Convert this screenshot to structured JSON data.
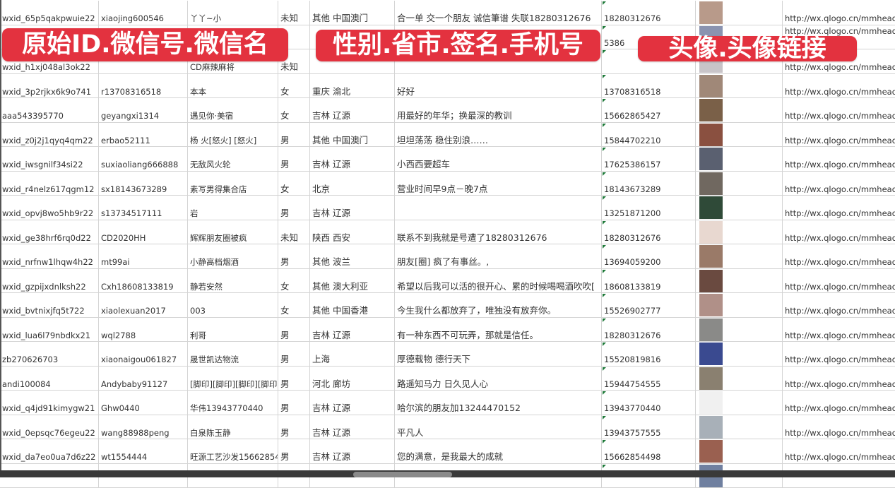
{
  "banners": [
    "原始ID.微信号.微信名",
    "性别.省市.签名.手机号",
    "头像.头像链接"
  ],
  "colors": {
    "banner": "#e3323f",
    "grid": "#d4d4d4",
    "marker": "#1f7a3a"
  },
  "rows": [
    {
      "id": "wxid_65p5qakpwuie22",
      "wechat": "xiaojing600546",
      "name": "丫丫~小",
      "gender": "未知",
      "region": "其他 中国澳门",
      "signature": "合一单 交一个朋友 诚信筆谱 失联18280312676",
      "phone": "18280312676",
      "avatar": "#b89a8a",
      "url": "http://wx.qlogo.cn/mmhead"
    },
    {
      "id": "",
      "wechat": "",
      "name": "",
      "gender": "",
      "region": "",
      "signature": "",
      "phone": "5386",
      "avatar": "#8a93b0",
      "url": "http://wx.qlogo.cn/mmhead"
    },
    {
      "id": "wxid_h1xj048al3ok22",
      "wechat": "",
      "name": "CD麻辣麻将",
      "gender": "未知",
      "region": "",
      "signature": "",
      "phone": "",
      "avatar": "#c8c4c8",
      "url": "http://wx.qlogo.cn/mmhead"
    },
    {
      "id": "wxid_3p2rjkx6k9o741",
      "wechat": "r13708316518",
      "name": "本本",
      "gender": "女",
      "region": "重庆 渝北",
      "signature": "好好",
      "phone": "13708316518",
      "avatar": "#a08878",
      "url": "http://wx.qlogo.cn/mmhead"
    },
    {
      "id": "aaa543395770",
      "wechat": "geyangxi1314",
      "name": "遇见你·美宿",
      "gender": "女",
      "region": "吉林 辽源",
      "signature": "用最好的年华；换最深的教训",
      "phone": "15662865427",
      "avatar": "#7a6048",
      "url": "http://wx.qlogo.cn/mmhead"
    },
    {
      "id": "wxid_z0j2j1qyq4qm22",
      "wechat": "erbao52111",
      "name": "杨 火[怒火] [怒火]",
      "gender": "男",
      "region": "其他 中国澳门",
      "signature": "坦坦荡荡 稳住别浪……",
      "phone": "15844702210",
      "avatar": "#8a5040",
      "url": "http://wx.qlogo.cn/mmhead"
    },
    {
      "id": "wxid_iwsgnilf34si22",
      "wechat": "suxiaoliang666888",
      "name": "无敌风火轮",
      "gender": "男",
      "region": "吉林 辽源",
      "signature": "小西西要超车",
      "phone": "17625386157",
      "avatar": "#5a6070",
      "url": "http://wx.qlogo.cn/mmhead"
    },
    {
      "id": "wxid_r4nelz617qgm12",
      "wechat": "sx18143673289",
      "name": "素写男得集合店",
      "gender": "女",
      "region": "北京",
      "signature": "营业时间早9点－晚7点",
      "phone": "18143673289",
      "avatar": "#706860",
      "url": "http://wx.qlogo.cn/mmhead"
    },
    {
      "id": "wxid_opvj8wo5hb9r22",
      "wechat": "s13734517111",
      "name": "岩",
      "gender": "男",
      "region": "吉林 辽源",
      "signature": "",
      "phone": "13251871200",
      "avatar": "#2f4a38",
      "url": "http://wx.qlogo.cn/mmhead"
    },
    {
      "id": "wxid_ge38hrf6rq0d22",
      "wechat": "CD2020HH",
      "name": "辉辉朋友圈被疯",
      "gender": "未知",
      "region": "陕西 西安",
      "signature": "联系不到我就是号遭了18280312676",
      "phone": "18280312676",
      "avatar": "#e8d8d0",
      "url": "http://wx.qlogo.cn/mmhead"
    },
    {
      "id": "wxid_nrfnw1lhqw4h22",
      "wechat": "mt99ai",
      "name": "小静高档烟酒",
      "gender": "男",
      "region": "其他 波兰",
      "signature": "朋友[圈] 疯了有事丝。,",
      "phone": "13694059200",
      "avatar": "#9a7a68",
      "url": "http://wx.qlogo.cn/mmhead"
    },
    {
      "id": "wxid_gzpijxdnlksh22",
      "wechat": "Cxh18608133819",
      "name": "静若安然",
      "gender": "女",
      "region": "其他 澳大利亚",
      "signature": "希望以后我可以活的很开心、累的时候喝喝酒吹吹[",
      "phone": "18608133819",
      "avatar": "#6a4a40",
      "url": "http://wx.qlogo.cn/mmhead"
    },
    {
      "id": "wxid_bvtnixjfq5t722",
      "wechat": "xiaolexuan2017",
      "name": "003",
      "gender": "女",
      "region": "其他 中国香港",
      "signature": "今生我什么都放弃了，唯独没有放弃你。",
      "phone": "15526902777",
      "avatar": "#b09088",
      "url": "http://wx.qlogo.cn/mmhead"
    },
    {
      "id": "wxid_lua6l79nbdkx21",
      "wechat": "wql2788",
      "name": "利哥",
      "gender": "男",
      "region": "吉林 辽源",
      "signature": "有一种东西不可玩弄，那就是信任。",
      "phone": "18280312676",
      "avatar": "#8a8a88",
      "url": "http://wx.qlogo.cn/mmhead"
    },
    {
      "id": "zb270626703",
      "wechat": "xiaonaigou061827",
      "name": "晟世凯达物流",
      "gender": "男",
      "region": "上海",
      "signature": "厚德载物 德行天下",
      "phone": "15520819816",
      "avatar": "#3a4a90",
      "url": "http://wx.qlogo.cn/mmhead"
    },
    {
      "id": "andi100084",
      "wechat": "Andybaby91127",
      "name": "[脚印][脚印][脚印][脚印]",
      "gender": "男",
      "region": "河北 廊坊",
      "signature": "路遥知马力 日久见人心",
      "phone": "15944754555",
      "avatar": "#8a8070",
      "url": "http://wx.qlogo.cn/mmhead"
    },
    {
      "id": "wxid_q4jd91kimygw21",
      "wechat": "Ghw0440",
      "name": "华伟13943770440",
      "gender": "男",
      "region": "吉林 辽源",
      "signature": "哈尔滨的朋友加13244470152",
      "phone": "13943770440",
      "avatar": "#f0f0f0",
      "url": "http://wx.qlogo.cn/mmhead"
    },
    {
      "id": "wxid_0epsqc76egeu22",
      "wechat": "wang88988peng",
      "name": "白泉陈玉静",
      "gender": "男",
      "region": "吉林 辽源",
      "signature": "平凡人",
      "phone": "13943757555",
      "avatar": "#a8b0b8",
      "url": "http://wx.qlogo.cn/mmhead"
    },
    {
      "id": "wxid_da7eo0ua7d6z22",
      "wechat": "wt1554444",
      "name": "旺源工艺沙发15662854",
      "gender": "男",
      "region": "吉林 辽源",
      "signature": "您的满意，是我最大的成就",
      "phone": "15662854498",
      "avatar": "#9a6050",
      "url": "http://wx.qlogo.cn/mmhead"
    },
    {
      "id": "",
      "wechat": "",
      "name": "",
      "gender": "",
      "region": "",
      "signature": "",
      "phone": "",
      "avatar": "#7080a0",
      "url": ""
    }
  ]
}
